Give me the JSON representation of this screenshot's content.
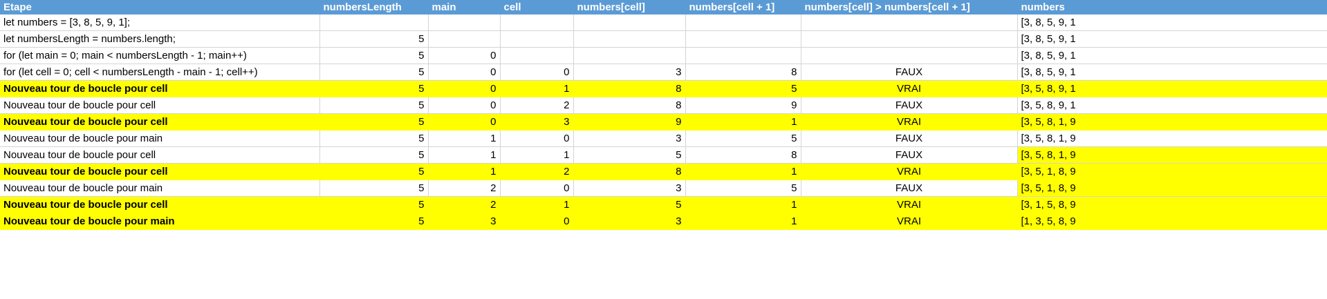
{
  "headers": {
    "step": "Etape",
    "length": "numbersLength",
    "main": "main",
    "cell": "cell",
    "num_cell": "numbers[cell]",
    "num_cell_next": "numbers[cell + 1]",
    "compare": "numbers[cell] > numbers[cell + 1]",
    "numbers": "numbers"
  },
  "rows": [
    {
      "step": "let numbers = [3, 8, 5, 9, 1];",
      "length": "",
      "main": "",
      "cell": "",
      "num_cell": "",
      "num_cell_next": "",
      "compare": "",
      "numbers": "[3, 8, 5, 9, 1",
      "highlight": false
    },
    {
      "step": "let numbersLength = numbers.length;",
      "length": "5",
      "main": "",
      "cell": "",
      "num_cell": "",
      "num_cell_next": "",
      "compare": "",
      "numbers": "[3, 8, 5, 9, 1",
      "highlight": false
    },
    {
      "step": "for (let main = 0; main < numbersLength - 1; main++)",
      "length": "5",
      "main": "0",
      "cell": "",
      "num_cell": "",
      "num_cell_next": "",
      "compare": "",
      "numbers": "[3, 8, 5, 9, 1",
      "highlight": false
    },
    {
      "step": "for (let cell = 0; cell < numbersLength - main - 1; cell++)",
      "length": "5",
      "main": "0",
      "cell": "0",
      "num_cell": "3",
      "num_cell_next": "8",
      "compare": "FAUX",
      "numbers": "[3, 8, 5, 9, 1",
      "highlight": false
    },
    {
      "step": "Nouveau tour de boucle pour cell",
      "length": "5",
      "main": "0",
      "cell": "1",
      "num_cell": "8",
      "num_cell_next": "5",
      "compare": "VRAI",
      "numbers": "[3, 5, 8, 9, 1",
      "highlight": true
    },
    {
      "step": "Nouveau tour de boucle pour cell",
      "length": "5",
      "main": "0",
      "cell": "2",
      "num_cell": "8",
      "num_cell_next": "9",
      "compare": "FAUX",
      "numbers": "[3, 5, 8, 9, 1",
      "highlight": false
    },
    {
      "step": "Nouveau tour de boucle pour cell",
      "length": "5",
      "main": "0",
      "cell": "3",
      "num_cell": "9",
      "num_cell_next": "1",
      "compare": "VRAI",
      "numbers": "[3, 5, 8, 1, 9",
      "highlight": true
    },
    {
      "step": "Nouveau tour de boucle pour main",
      "length": "5",
      "main": "1",
      "cell": "0",
      "num_cell": "3",
      "num_cell_next": "5",
      "compare": "FAUX",
      "numbers": "[3, 5, 8, 1, 9",
      "highlight": false
    },
    {
      "step": "Nouveau tour de boucle pour cell",
      "length": "5",
      "main": "1",
      "cell": "1",
      "num_cell": "5",
      "num_cell_next": "8",
      "compare": "FAUX",
      "numbers": "[3, 5, 8, 1, 9",
      "highlight": false
    },
    {
      "step": "Nouveau tour de boucle pour cell",
      "length": "5",
      "main": "1",
      "cell": "2",
      "num_cell": "8",
      "num_cell_next": "1",
      "compare": "VRAI",
      "numbers": "[3, 5, 1, 8, 9",
      "highlight": true
    },
    {
      "step": "Nouveau tour de boucle pour main",
      "length": "5",
      "main": "2",
      "cell": "0",
      "num_cell": "3",
      "num_cell_next": "5",
      "compare": "FAUX",
      "numbers": "[3, 5, 1, 8, 9",
      "highlight": false
    },
    {
      "step": "Nouveau tour de boucle pour cell",
      "length": "5",
      "main": "2",
      "cell": "1",
      "num_cell": "5",
      "num_cell_next": "1",
      "compare": "VRAI",
      "numbers": "[3, 1, 5, 8, 9",
      "highlight": true
    },
    {
      "step": "Nouveau tour de boucle pour main",
      "length": "5",
      "main": "3",
      "cell": "0",
      "num_cell": "3",
      "num_cell_next": "1",
      "compare": "VRAI",
      "numbers": "[1, 3, 5, 8, 9",
      "highlight": true
    }
  ],
  "colors": {
    "header_bg": "#5b9bd5",
    "highlight": "#ffff00",
    "gridline": "#d4d4d4"
  }
}
